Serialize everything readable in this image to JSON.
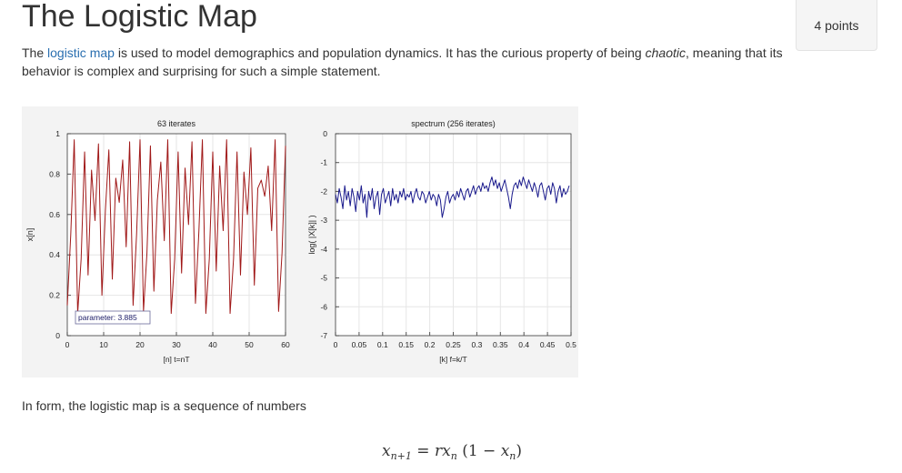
{
  "page": {
    "title": "The Logistic Map",
    "points": "4 points",
    "intro": {
      "before_link": "The ",
      "link_text": "logistic map",
      "after_link": " is used to model demographics and population dynamics. It has the curious property of being ",
      "emphasis": "chaotic",
      "after_emphasis": ", meaning that its behavior is complex and surprising for such a simple statement."
    },
    "in_form_text": "In form, the logistic map is a sequence of numbers",
    "equation": {
      "lhs": "x",
      "lhs_sub": "n+1",
      "equals": " = ",
      "r": "r",
      "x1": "x",
      "x1_sub": "n",
      "open": " (1 − ",
      "x2": "x",
      "x2_sub": "n",
      "close": ")"
    },
    "colors": {
      "link": "#2a6fb0",
      "series_left": "#a01818",
      "series_right": "#1a1a8c"
    }
  },
  "chart_data": [
    {
      "type": "line",
      "title": "63 iterates",
      "xlabel": "[n]  t=nT",
      "ylabel": "x[n]",
      "xlim": [
        0,
        63
      ],
      "ylim": [
        0,
        1
      ],
      "xticks": [
        "0",
        "10",
        "20",
        "30",
        "40",
        "50",
        "60"
      ],
      "yticks": [
        "0",
        "0.2",
        "0.4",
        "0.6",
        "0.8",
        "1"
      ],
      "grid": true,
      "annotation": "parameter: 3.885",
      "series": [
        {
          "x": [
            0,
            1,
            2,
            3,
            4,
            5,
            6,
            7,
            8,
            9,
            10,
            11,
            12,
            13,
            14,
            15,
            16,
            17,
            18,
            19,
            20,
            21,
            22,
            23,
            24,
            25,
            26,
            27,
            28,
            29,
            30,
            31,
            32,
            33,
            34,
            35,
            36,
            37,
            38,
            39,
            40,
            41,
            42,
            43,
            44,
            45,
            46,
            47,
            48,
            49,
            50,
            51,
            52,
            53,
            54,
            55,
            56,
            57,
            58,
            59,
            60,
            61,
            62,
            63
          ],
          "values": [
            0.15,
            0.5,
            0.97,
            0.11,
            0.38,
            0.91,
            0.3,
            0.82,
            0.57,
            0.95,
            0.2,
            0.62,
            0.92,
            0.28,
            0.78,
            0.66,
            0.87,
            0.44,
            0.96,
            0.15,
            0.5,
            0.97,
            0.12,
            0.41,
            0.94,
            0.22,
            0.67,
            0.86,
            0.47,
            0.97,
            0.11,
            0.38,
            0.91,
            0.31,
            0.83,
            0.55,
            0.96,
            0.16,
            0.52,
            0.97,
            0.11,
            0.38,
            0.91,
            0.32,
            0.84,
            0.52,
            0.97,
            0.11,
            0.38,
            0.91,
            0.3,
            0.81,
            0.6,
            0.93,
            0.25,
            0.73,
            0.77,
            0.69,
            0.84,
            0.52,
            0.97,
            0.12,
            0.41,
            0.94
          ]
        }
      ]
    },
    {
      "type": "line",
      "title": "spectrum (256 iterates)",
      "xlabel": "[k]  f=k/T",
      "ylabel": "log( |X[k]| )",
      "xlim": [
        0,
        0.5
      ],
      "ylim": [
        -7,
        0
      ],
      "xticks": [
        "0",
        "0.05",
        "0.1",
        "0.15",
        "0.2",
        "0.25",
        "0.3",
        "0.35",
        "0.4",
        "0.45",
        "0.5"
      ],
      "yticks": [
        "0",
        "-1",
        "-2",
        "-3",
        "-4",
        "-5",
        "-6",
        "-7"
      ],
      "grid": true,
      "series": [
        {
          "x_start": 0,
          "x_step": 0.00390625,
          "values": [
            -2.1,
            -2.4,
            -1.9,
            -2.2,
            -2.6,
            -1.8,
            -2.3,
            -2.0,
            -2.5,
            -1.9,
            -2.2,
            -2.7,
            -2.0,
            -2.3,
            -1.8,
            -2.4,
            -2.1,
            -2.9,
            -2.0,
            -2.3,
            -1.9,
            -2.6,
            -2.2,
            -2.0,
            -2.8,
            -2.1,
            -1.9,
            -2.4,
            -2.2,
            -2.0,
            -2.5,
            -1.9,
            -2.3,
            -2.1,
            -2.4,
            -2.0,
            -2.2,
            -1.9,
            -2.3,
            -2.1,
            -2.2,
            -2.0,
            -2.4,
            -2.1,
            -1.9,
            -2.2,
            -2.3,
            -2.0,
            -2.1,
            -2.4,
            -2.2,
            -2.0,
            -2.3,
            -2.1,
            -2.2,
            -2.5,
            -2.1,
            -2.3,
            -2.9,
            -2.6,
            -2.2,
            -2.0,
            -2.4,
            -2.2,
            -2.1,
            -2.3,
            -2.0,
            -2.2,
            -1.9,
            -2.1,
            -2.3,
            -2.0,
            -1.9,
            -2.2,
            -2.0,
            -1.8,
            -2.1,
            -1.9,
            -1.8,
            -2.0,
            -1.7,
            -1.9,
            -1.8,
            -2.0,
            -1.7,
            -1.5,
            -1.8,
            -1.6,
            -1.9,
            -1.7,
            -2.0,
            -1.8,
            -1.6,
            -1.9,
            -2.2,
            -2.6,
            -2.1,
            -1.8,
            -1.7,
            -1.9,
            -1.6,
            -1.8,
            -1.5,
            -1.7,
            -1.9,
            -1.6,
            -1.8,
            -2.0,
            -1.7,
            -1.9,
            -2.2,
            -1.8,
            -1.7,
            -2.0,
            -2.3,
            -1.9,
            -1.8,
            -2.1,
            -1.7,
            -1.9,
            -2.4,
            -2.0,
            -1.8,
            -2.2,
            -1.9,
            -2.1,
            -2.0,
            -1.8
          ]
        }
      ]
    }
  ]
}
